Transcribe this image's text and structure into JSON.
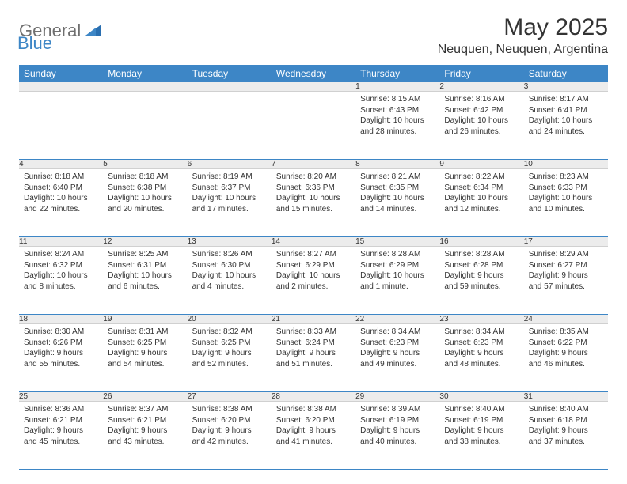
{
  "logo": {
    "general": "General",
    "blue": "Blue"
  },
  "header": {
    "title": "May 2025",
    "location": "Neuquen, Neuquen, Argentina"
  },
  "colors": {
    "brand_blue": "#3d86c6",
    "gray_bg": "#ececec",
    "text": "#333333",
    "logo_gray": "#6f6f6f"
  },
  "weekdays": [
    "Sunday",
    "Monday",
    "Tuesday",
    "Wednesday",
    "Thursday",
    "Friday",
    "Saturday"
  ],
  "weeks": [
    [
      null,
      null,
      null,
      null,
      {
        "n": "1",
        "sr": "8:15 AM",
        "ss": "6:43 PM",
        "dl": "10 hours and 28 minutes."
      },
      {
        "n": "2",
        "sr": "8:16 AM",
        "ss": "6:42 PM",
        "dl": "10 hours and 26 minutes."
      },
      {
        "n": "3",
        "sr": "8:17 AM",
        "ss": "6:41 PM",
        "dl": "10 hours and 24 minutes."
      }
    ],
    [
      {
        "n": "4",
        "sr": "8:18 AM",
        "ss": "6:40 PM",
        "dl": "10 hours and 22 minutes."
      },
      {
        "n": "5",
        "sr": "8:18 AM",
        "ss": "6:38 PM",
        "dl": "10 hours and 20 minutes."
      },
      {
        "n": "6",
        "sr": "8:19 AM",
        "ss": "6:37 PM",
        "dl": "10 hours and 17 minutes."
      },
      {
        "n": "7",
        "sr": "8:20 AM",
        "ss": "6:36 PM",
        "dl": "10 hours and 15 minutes."
      },
      {
        "n": "8",
        "sr": "8:21 AM",
        "ss": "6:35 PM",
        "dl": "10 hours and 14 minutes."
      },
      {
        "n": "9",
        "sr": "8:22 AM",
        "ss": "6:34 PM",
        "dl": "10 hours and 12 minutes."
      },
      {
        "n": "10",
        "sr": "8:23 AM",
        "ss": "6:33 PM",
        "dl": "10 hours and 10 minutes."
      }
    ],
    [
      {
        "n": "11",
        "sr": "8:24 AM",
        "ss": "6:32 PM",
        "dl": "10 hours and 8 minutes."
      },
      {
        "n": "12",
        "sr": "8:25 AM",
        "ss": "6:31 PM",
        "dl": "10 hours and 6 minutes."
      },
      {
        "n": "13",
        "sr": "8:26 AM",
        "ss": "6:30 PM",
        "dl": "10 hours and 4 minutes."
      },
      {
        "n": "14",
        "sr": "8:27 AM",
        "ss": "6:29 PM",
        "dl": "10 hours and 2 minutes."
      },
      {
        "n": "15",
        "sr": "8:28 AM",
        "ss": "6:29 PM",
        "dl": "10 hours and 1 minute."
      },
      {
        "n": "16",
        "sr": "8:28 AM",
        "ss": "6:28 PM",
        "dl": "9 hours and 59 minutes."
      },
      {
        "n": "17",
        "sr": "8:29 AM",
        "ss": "6:27 PM",
        "dl": "9 hours and 57 minutes."
      }
    ],
    [
      {
        "n": "18",
        "sr": "8:30 AM",
        "ss": "6:26 PM",
        "dl": "9 hours and 55 minutes."
      },
      {
        "n": "19",
        "sr": "8:31 AM",
        "ss": "6:25 PM",
        "dl": "9 hours and 54 minutes."
      },
      {
        "n": "20",
        "sr": "8:32 AM",
        "ss": "6:25 PM",
        "dl": "9 hours and 52 minutes."
      },
      {
        "n": "21",
        "sr": "8:33 AM",
        "ss": "6:24 PM",
        "dl": "9 hours and 51 minutes."
      },
      {
        "n": "22",
        "sr": "8:34 AM",
        "ss": "6:23 PM",
        "dl": "9 hours and 49 minutes."
      },
      {
        "n": "23",
        "sr": "8:34 AM",
        "ss": "6:23 PM",
        "dl": "9 hours and 48 minutes."
      },
      {
        "n": "24",
        "sr": "8:35 AM",
        "ss": "6:22 PM",
        "dl": "9 hours and 46 minutes."
      }
    ],
    [
      {
        "n": "25",
        "sr": "8:36 AM",
        "ss": "6:21 PM",
        "dl": "9 hours and 45 minutes."
      },
      {
        "n": "26",
        "sr": "8:37 AM",
        "ss": "6:21 PM",
        "dl": "9 hours and 43 minutes."
      },
      {
        "n": "27",
        "sr": "8:38 AM",
        "ss": "6:20 PM",
        "dl": "9 hours and 42 minutes."
      },
      {
        "n": "28",
        "sr": "8:38 AM",
        "ss": "6:20 PM",
        "dl": "9 hours and 41 minutes."
      },
      {
        "n": "29",
        "sr": "8:39 AM",
        "ss": "6:19 PM",
        "dl": "9 hours and 40 minutes."
      },
      {
        "n": "30",
        "sr": "8:40 AM",
        "ss": "6:19 PM",
        "dl": "9 hours and 38 minutes."
      },
      {
        "n": "31",
        "sr": "8:40 AM",
        "ss": "6:18 PM",
        "dl": "9 hours and 37 minutes."
      }
    ]
  ],
  "labels": {
    "sunrise": "Sunrise:",
    "sunset": "Sunset:",
    "daylight": "Daylight:"
  }
}
